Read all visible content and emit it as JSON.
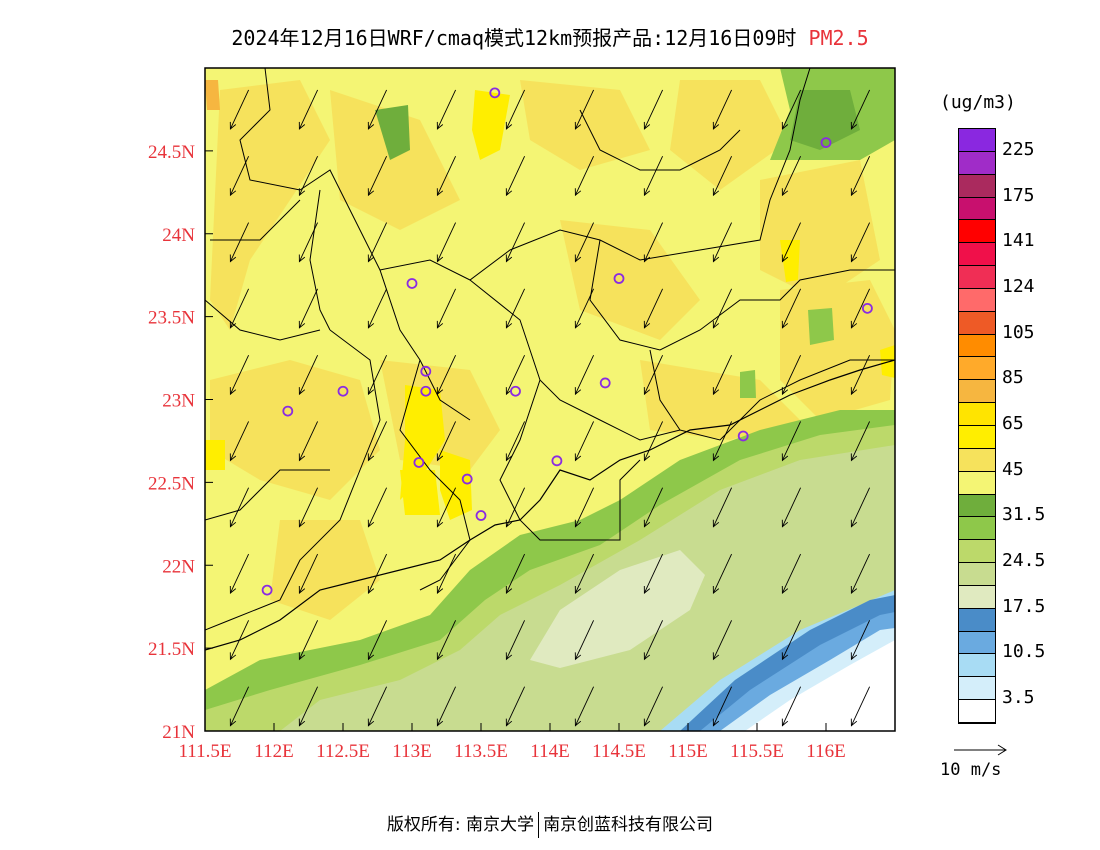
{
  "title": {
    "text": "2024年12月16日WRF/cmaq模式12km预报产品:12月16日09时",
    "pollutant": "PM2.5"
  },
  "map": {
    "lon_range": [
      111.5,
      116.5
    ],
    "lat_range": [
      21.0,
      25.0
    ],
    "lon_ticks": [
      {
        "value": 111.5,
        "label": "111.5E"
      },
      {
        "value": 112.0,
        "label": "112E"
      },
      {
        "value": 112.5,
        "label": "112.5E"
      },
      {
        "value": 113.0,
        "label": "113E"
      },
      {
        "value": 113.5,
        "label": "113.5E"
      },
      {
        "value": 114.0,
        "label": "114E"
      },
      {
        "value": 114.5,
        "label": "114.5E"
      },
      {
        "value": 115.0,
        "label": "115E"
      },
      {
        "value": 115.5,
        "label": "115.5E"
      },
      {
        "value": 116.0,
        "label": "116E"
      }
    ],
    "lat_ticks": [
      {
        "value": 21.0,
        "label": "21N"
      },
      {
        "value": 21.5,
        "label": "21.5N"
      },
      {
        "value": 22.0,
        "label": "22N"
      },
      {
        "value": 22.5,
        "label": "22.5N"
      },
      {
        "value": 23.0,
        "label": "23N"
      },
      {
        "value": 23.5,
        "label": "23.5N"
      },
      {
        "value": 24.0,
        "label": "24N"
      },
      {
        "value": 24.5,
        "label": "24.5N"
      }
    ],
    "axis_label_color": "#e8333a",
    "stations": [
      {
        "lon": 113.6,
        "lat": 24.85
      },
      {
        "lon": 116.0,
        "lat": 24.55
      },
      {
        "lon": 113.0,
        "lat": 23.7
      },
      {
        "lon": 114.5,
        "lat": 23.73
      },
      {
        "lon": 116.3,
        "lat": 23.55
      },
      {
        "lon": 113.1,
        "lat": 23.17
      },
      {
        "lon": 112.5,
        "lat": 23.05
      },
      {
        "lon": 113.1,
        "lat": 23.05
      },
      {
        "lon": 113.75,
        "lat": 23.05
      },
      {
        "lon": 114.4,
        "lat": 23.1
      },
      {
        "lon": 112.1,
        "lat": 22.93
      },
      {
        "lon": 115.4,
        "lat": 22.78
      },
      {
        "lon": 113.05,
        "lat": 22.62
      },
      {
        "lon": 113.4,
        "lat": 22.52
      },
      {
        "lon": 114.05,
        "lat": 22.63
      },
      {
        "lon": 113.5,
        "lat": 22.3
      },
      {
        "lon": 111.95,
        "lat": 21.85
      }
    ],
    "wind": {
      "u_ms": -3.5,
      "v_ms": -7.5
    }
  },
  "legend": {
    "unit": "(ug/m3)",
    "colors": [
      "#8a28e0",
      "#a02cc8",
      "#aa2a5e",
      "#c8106e",
      "#ff0000",
      "#f0104a",
      "#f02e55",
      "#ff6a6a",
      "#ee5a26",
      "#ff8c00",
      "#ffaa2a",
      "#f6b640",
      "#ffe400",
      "#ffee00",
      "#f6e25c",
      "#f4f574",
      "#6fae3c",
      "#8ec84a",
      "#bcd96a",
      "#c8dc90",
      "#e0eac0",
      "#4a8cc8",
      "#6aaae0",
      "#a8dcf4",
      "#d4eefa",
      "#ffffff"
    ],
    "labels": [
      "225",
      "175",
      "141",
      "124",
      "105",
      "85",
      "65",
      "45",
      "31.5",
      "24.5",
      "17.5",
      "10.5",
      "3.5"
    ]
  },
  "wind_legend": {
    "label": "10 m/s",
    "speed_ms": 10
  },
  "footer": {
    "copyright": "版权所有: 南京大学",
    "company": "南京创蓝科技有限公司"
  }
}
